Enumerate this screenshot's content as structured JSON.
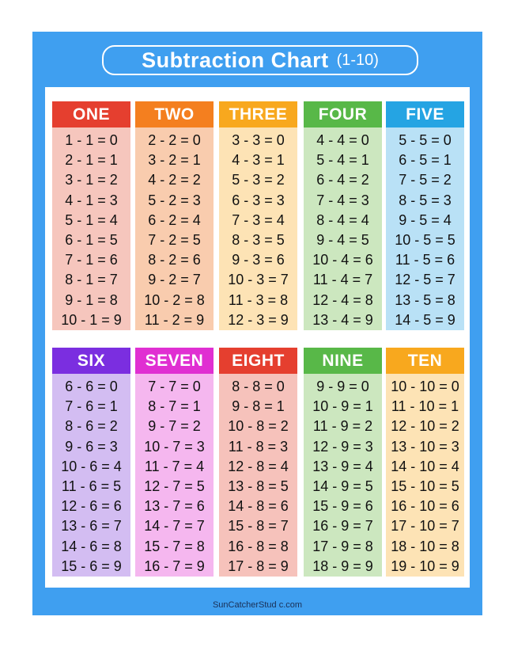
{
  "title": {
    "main": "Subtraction Chart",
    "range": "(1-10)"
  },
  "footer": "SunCatcherStud c.com",
  "columns": [
    {
      "name": "ONE",
      "head_color": "#e53f2f",
      "body_color": "#f6c6bd",
      "equations": [
        "1 - 1 = 0",
        "2 - 1 = 1",
        "3 - 1 = 2",
        "4 - 1 = 3",
        "5 - 1 = 4",
        "6 - 1 = 5",
        "7 - 1 = 6",
        "8 - 1 = 7",
        "9 - 1 = 8",
        "10 - 1 = 9"
      ]
    },
    {
      "name": "TWO",
      "head_color": "#f47f1f",
      "body_color": "#f9ccae",
      "equations": [
        "2 - 2 = 0",
        "3 - 2 = 1",
        "4 - 2 = 2",
        "5 - 2 = 3",
        "6 - 2 = 4",
        "7 - 2 = 5",
        "8 - 2 = 6",
        "9 - 2 = 7",
        "10 - 2 = 8",
        "11 - 2 = 9"
      ]
    },
    {
      "name": "THREE",
      "head_color": "#f8a81e",
      "body_color": "#fde3b5",
      "equations": [
        "3 - 3 = 0",
        "4 - 3 = 1",
        "5 - 3 = 2",
        "6 - 3 = 3",
        "7 - 3 = 4",
        "8 - 3 = 5",
        "9 - 3 = 6",
        "10 - 3 = 7",
        "11 - 3 = 8",
        "12 - 3 = 9"
      ]
    },
    {
      "name": "FOUR",
      "head_color": "#58b848",
      "body_color": "#cce7bf",
      "equations": [
        "4 - 4 = 0",
        "5 - 4 = 1",
        "6 - 4 = 2",
        "7 - 4 = 3",
        "8 - 4 = 4",
        "9 - 4 = 5",
        "10 - 4 = 6",
        "11 - 4 = 7",
        "12 - 4 = 8",
        "13 - 4 = 9"
      ]
    },
    {
      "name": "FIVE",
      "head_color": "#25a4e3",
      "body_color": "#b9e1f6",
      "equations": [
        "5 - 5 = 0",
        "6 - 5 = 1",
        "7 - 5 = 2",
        "8 - 5 = 3",
        "9 - 5 = 4",
        "10 - 5 = 5",
        "11 - 5 = 6",
        "12 - 5 = 7",
        "13 - 5 = 8",
        "14 - 5 = 9"
      ]
    },
    {
      "name": "SIX",
      "head_color": "#7b2ee0",
      "body_color": "#d3bdf2",
      "equations": [
        "6 - 6 = 0",
        "7 - 6 = 1",
        "8 - 6 = 2",
        "9 - 6 = 3",
        "10 - 6 = 4",
        "11 - 6 = 5",
        "12 - 6 = 6",
        "13 - 6 = 7",
        "14 - 6 = 8",
        "15 - 6 = 9"
      ]
    },
    {
      "name": "SEVEN",
      "head_color": "#e02fd2",
      "body_color": "#f5b7ef",
      "equations": [
        "7 - 7 = 0",
        "8 - 7 = 1",
        "9 - 7 = 2",
        "10 - 7 = 3",
        "11 - 7 = 4",
        "12 - 7 = 5",
        "13 - 7 = 6",
        "14 - 7 = 7",
        "15 - 7 = 8",
        "16 - 7 = 9"
      ]
    },
    {
      "name": "EIGHT",
      "head_color": "#e53f2f",
      "body_color": "#f6c2bb",
      "equations": [
        "8 - 8 = 0",
        "9 - 8 = 1",
        "10 - 8 = 2",
        "11 - 8 = 3",
        "12 - 8 = 4",
        "13 - 8 = 5",
        "14 - 8 = 6",
        "15 - 8 = 7",
        "16 - 8 = 8",
        "17 - 8 = 9"
      ]
    },
    {
      "name": "NINE",
      "head_color": "#58b848",
      "body_color": "#cce7bf",
      "equations": [
        "9 - 9 = 0",
        "10 - 9 = 1",
        "11 - 9 = 2",
        "12 - 9 = 3",
        "13 - 9 = 4",
        "14 - 9 = 5",
        "15 - 9 = 6",
        "16 - 9 = 7",
        "17 - 9 = 8",
        "18 - 9 = 9"
      ]
    },
    {
      "name": "TEN",
      "head_color": "#f8a81e",
      "body_color": "#fde3b5",
      "equations": [
        "10 - 10 = 0",
        "11 - 10 = 1",
        "12 - 10 = 2",
        "13 - 10 = 3",
        "14 - 10 = 4",
        "15 - 10 = 5",
        "16 - 10 = 6",
        "17 - 10 = 7",
        "18 - 10 = 8",
        "19 - 10 = 9"
      ]
    }
  ]
}
